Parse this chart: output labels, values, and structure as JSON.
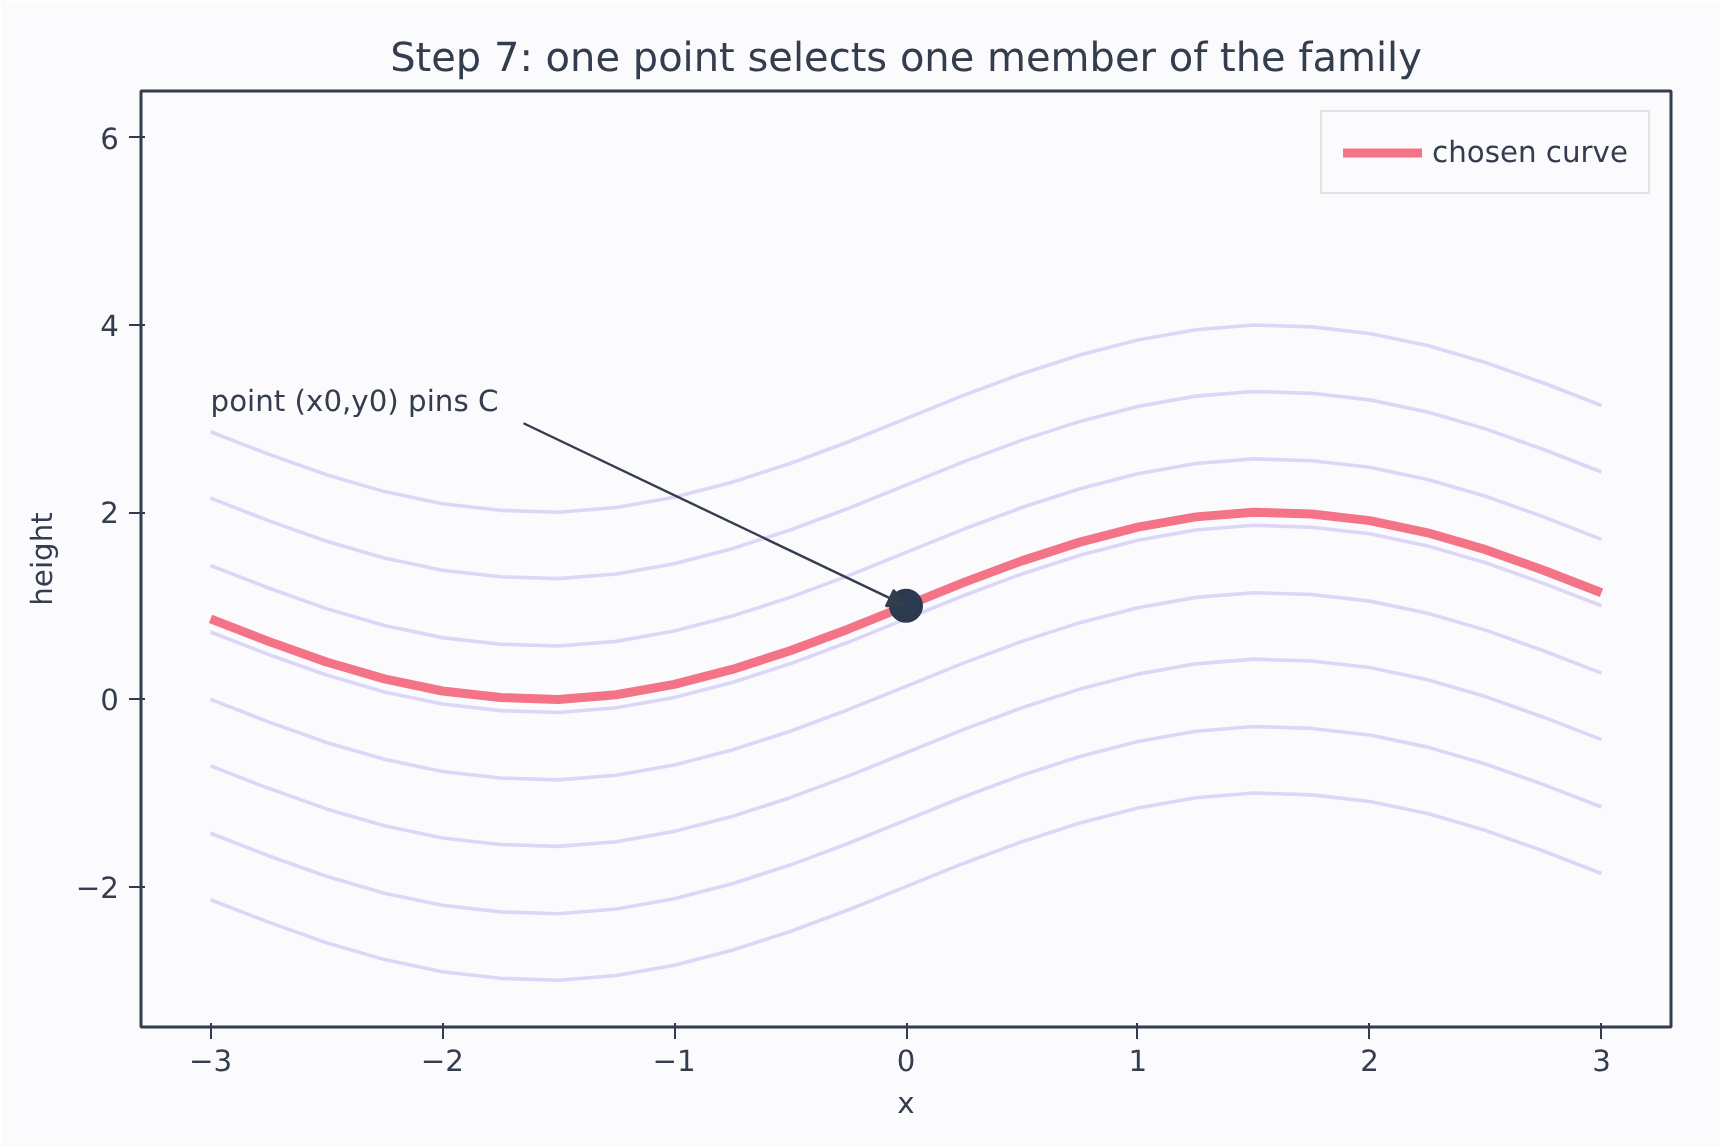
{
  "chart_data": {
    "type": "line",
    "title": "Step 7: one point selects one member of the family",
    "xlabel": "x",
    "ylabel": "height",
    "x": [
      -3,
      -2.75,
      -2.5,
      -2.25,
      -2,
      -1.75,
      -1.5,
      -1.25,
      -1,
      -0.75,
      -0.5,
      -0.25,
      0,
      0.25,
      0.5,
      0.75,
      1,
      1.25,
      1.5,
      1.75,
      2,
      2.25,
      2.5,
      2.75,
      3
    ],
    "series": [
      {
        "color": "#dcd6f7",
        "values": [
          -2.14,
          -2.38,
          -2.6,
          -2.78,
          -2.91,
          -2.98,
          -3.0,
          -2.95,
          -2.84,
          -2.68,
          -2.48,
          -2.25,
          -2,
          -1.75,
          -1.52,
          -1.32,
          -1.16,
          -1.05,
          -1.0,
          -1.02,
          -1.09,
          -1.22,
          -1.4,
          -1.62,
          -1.86
        ]
      },
      {
        "color": "#dcd6f7",
        "values": [
          -1.43,
          -1.67,
          -1.89,
          -2.07,
          -2.2,
          -2.27,
          -2.29,
          -2.24,
          -2.13,
          -1.97,
          -1.77,
          -1.54,
          -1.29,
          -1.04,
          -0.81,
          -0.61,
          -0.45,
          -0.34,
          -0.29,
          -0.31,
          -0.38,
          -0.51,
          -0.69,
          -0.91,
          -1.15
        ]
      },
      {
        "color": "#dcd6f7",
        "values": [
          -0.71,
          -0.95,
          -1.17,
          -1.35,
          -1.48,
          -1.55,
          -1.57,
          -1.52,
          -1.41,
          -1.25,
          -1.05,
          -0.82,
          -0.57,
          -0.32,
          -0.09,
          0.11,
          0.27,
          0.38,
          0.43,
          0.41,
          0.34,
          0.21,
          0.03,
          -0.19,
          -0.43
        ]
      },
      {
        "color": "#dcd6f7",
        "values": [
          0,
          -0.24,
          -0.46,
          -0.64,
          -0.77,
          -0.84,
          -0.86,
          -0.81,
          -0.7,
          -0.54,
          -0.34,
          -0.11,
          0.14,
          0.39,
          0.62,
          0.82,
          0.98,
          1.09,
          1.14,
          1.12,
          1.05,
          0.92,
          0.74,
          0.52,
          0.28
        ]
      },
      {
        "color": "#dcd6f7",
        "values": [
          0.72,
          0.48,
          0.26,
          0.08,
          -0.05,
          -0.12,
          -0.14,
          -0.09,
          0.02,
          0.18,
          0.38,
          0.61,
          0.86,
          1.11,
          1.34,
          1.54,
          1.7,
          1.81,
          1.86,
          1.84,
          1.77,
          1.64,
          1.46,
          1.24,
          1.0
        ]
      },
      {
        "color": "#dcd6f7",
        "values": [
          1.43,
          1.19,
          0.97,
          0.79,
          0.66,
          0.59,
          0.57,
          0.62,
          0.73,
          0.89,
          1.09,
          1.32,
          1.57,
          1.82,
          2.05,
          2.25,
          2.41,
          2.52,
          2.57,
          2.55,
          2.48,
          2.35,
          2.17,
          1.95,
          1.71
        ]
      },
      {
        "color": "#dcd6f7",
        "values": [
          2.15,
          1.91,
          1.69,
          1.51,
          1.38,
          1.31,
          1.29,
          1.34,
          1.45,
          1.61,
          1.81,
          2.04,
          2.29,
          2.54,
          2.77,
          2.97,
          3.13,
          3.24,
          3.29,
          3.27,
          3.2,
          3.07,
          2.89,
          2.67,
          2.43
        ]
      },
      {
        "color": "#dcd6f7",
        "values": [
          2.86,
          2.62,
          2.4,
          2.22,
          2.09,
          2.02,
          2.0,
          2.05,
          2.16,
          2.32,
          2.52,
          2.75,
          3,
          3.25,
          3.48,
          3.68,
          3.84,
          3.95,
          4.0,
          3.98,
          3.91,
          3.78,
          3.6,
          3.38,
          3.14
        ]
      },
      {
        "name": "chosen curve",
        "color": "#f47386",
        "values": [
          0.86,
          0.62,
          0.4,
          0.22,
          0.09,
          0.02,
          0,
          0.05,
          0.16,
          0.32,
          0.52,
          0.75,
          1,
          1.25,
          1.48,
          1.68,
          1.84,
          1.95,
          2.0,
          1.98,
          1.91,
          1.78,
          1.6,
          1.38,
          1.14
        ]
      },
      {
        "type": "scatter",
        "marker": "circle",
        "color": "#2b3a4e",
        "x": [
          0
        ],
        "values": [
          1
        ]
      }
    ],
    "annotations": [
      {
        "text": "point (x0,y0) pins C",
        "x": 0,
        "y": 1
      }
    ],
    "xlim": [
      -3.3,
      3.3
    ],
    "ylim": [
      -3.5,
      6.5
    ],
    "xticks": [
      {
        "value": -3,
        "label": "−3"
      },
      {
        "value": -2,
        "label": "−2"
      },
      {
        "value": -1,
        "label": "−1"
      },
      0,
      1,
      2,
      3
    ],
    "yticks": [
      {
        "value": -2,
        "label": "−2"
      },
      0,
      2,
      4,
      6
    ],
    "grid": false,
    "legend": "top right",
    "line_style": "solid"
  }
}
